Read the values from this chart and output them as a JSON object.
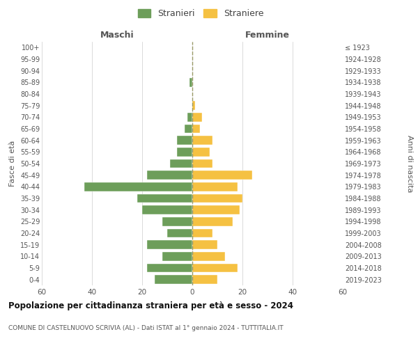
{
  "age_groups": [
    "0-4",
    "5-9",
    "10-14",
    "15-19",
    "20-24",
    "25-29",
    "30-34",
    "35-39",
    "40-44",
    "45-49",
    "50-54",
    "55-59",
    "60-64",
    "65-69",
    "70-74",
    "75-79",
    "80-84",
    "85-89",
    "90-94",
    "95-99",
    "100+"
  ],
  "birth_years": [
    "2019-2023",
    "2014-2018",
    "2009-2013",
    "2004-2008",
    "1999-2003",
    "1994-1998",
    "1989-1993",
    "1984-1988",
    "1979-1983",
    "1974-1978",
    "1969-1973",
    "1964-1968",
    "1959-1963",
    "1954-1958",
    "1949-1953",
    "1944-1948",
    "1939-1943",
    "1934-1938",
    "1929-1933",
    "1924-1928",
    "≤ 1923"
  ],
  "maschi": [
    15,
    18,
    12,
    18,
    10,
    12,
    20,
    22,
    43,
    18,
    9,
    6,
    6,
    3,
    2,
    0,
    0,
    1,
    0,
    0,
    0
  ],
  "femmine": [
    10,
    18,
    13,
    10,
    8,
    16,
    19,
    20,
    18,
    24,
    8,
    7,
    8,
    3,
    4,
    1,
    0,
    0,
    0,
    0,
    0
  ],
  "color_maschi": "#6d9e5a",
  "color_femmine": "#f5c142",
  "title": "Popolazione per cittadinanza straniera per età e sesso - 2024",
  "subtitle": "COMUNE DI CASTELNUOVO SCRIVIA (AL) - Dati ISTAT al 1° gennaio 2024 - TUTTITALIA.IT",
  "legend_maschi": "Stranieri",
  "legend_femmine": "Straniere",
  "xlabel_left": "Maschi",
  "xlabel_right": "Femmine",
  "ylabel_left": "Fasce di età",
  "ylabel_right": "Anni di nascita",
  "xlim": 60,
  "background_color": "#ffffff",
  "grid_color": "#cccccc",
  "dashed_line_color": "#999966"
}
